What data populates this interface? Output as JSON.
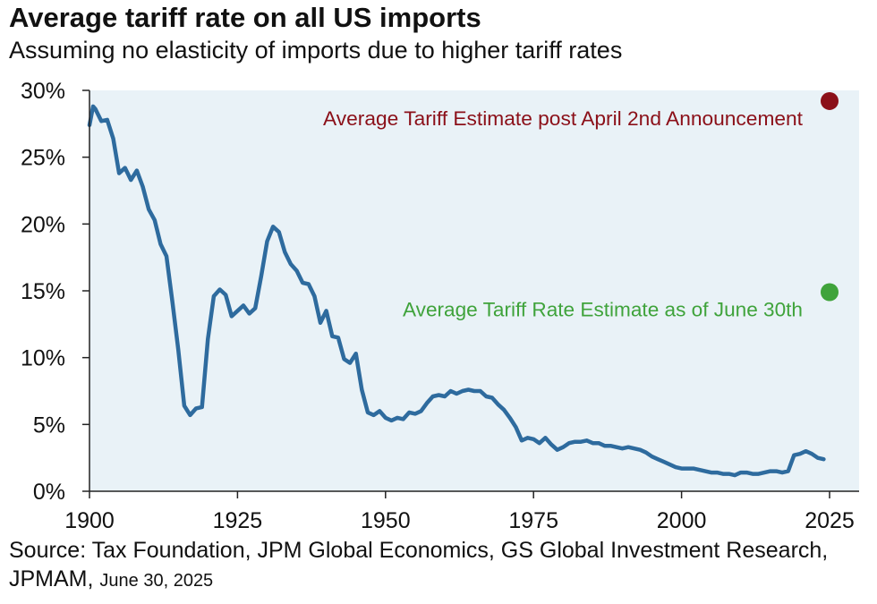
{
  "chart_data": {
    "type": "line",
    "title": "Average tariff rate on all US imports",
    "subtitle": "Assuming no elasticity of imports due to higher tariff rates",
    "xlabel": "",
    "ylabel": "",
    "xlim": [
      1900,
      2025
    ],
    "ylim": [
      0,
      30
    ],
    "x_ticks": [
      1900,
      1925,
      1950,
      1975,
      2000,
      2025
    ],
    "x_tick_labels": [
      "1900",
      "1925",
      "1950",
      "1975",
      "2000",
      "2025"
    ],
    "y_ticks": [
      0,
      5,
      10,
      15,
      20,
      25,
      30
    ],
    "y_tick_labels": [
      "0%",
      "5%",
      "10%",
      "15%",
      "20%",
      "25%",
      "30%"
    ],
    "series": [
      {
        "name": "Average tariff rate",
        "color": "#2e6b9e",
        "x": [
          1900,
          1900.6,
          1901,
          1902,
          1903,
          1904,
          1905,
          1906,
          1907,
          1908,
          1909,
          1910,
          1911,
          1912,
          1913,
          1914,
          1915,
          1916,
          1917,
          1918,
          1919,
          1920,
          1921,
          1922,
          1923,
          1924,
          1925,
          1926,
          1927,
          1928,
          1929,
          1930,
          1931,
          1932,
          1933,
          1934,
          1935,
          1936,
          1937,
          1938,
          1939,
          1940,
          1941,
          1942,
          1943,
          1944,
          1945,
          1946,
          1947,
          1948,
          1949,
          1950,
          1951,
          1952,
          1953,
          1954,
          1955,
          1956,
          1957,
          1958,
          1959,
          1960,
          1961,
          1962,
          1963,
          1964,
          1965,
          1966,
          1967,
          1968,
          1969,
          1970,
          1971,
          1972,
          1973,
          1974,
          1975,
          1976,
          1977,
          1978,
          1979,
          1980,
          1981,
          1982,
          1983,
          1984,
          1985,
          1986,
          1987,
          1988,
          1989,
          1990,
          1991,
          1992,
          1993,
          1994,
          1995,
          1996,
          1997,
          1998,
          1999,
          2000,
          2001,
          2002,
          2003,
          2004,
          2005,
          2006,
          2007,
          2008,
          2009,
          2010,
          2011,
          2012,
          2013,
          2014,
          2015,
          2016,
          2017,
          2018,
          2019,
          2020,
          2021,
          2022,
          2023,
          2024
        ],
        "values": [
          27.4,
          28.8,
          28.6,
          27.7,
          27.8,
          26.4,
          23.8,
          24.2,
          23.3,
          24.0,
          22.8,
          21.1,
          20.3,
          18.5,
          17.6,
          14.2,
          10.6,
          6.4,
          5.7,
          6.2,
          6.3,
          11.4,
          14.6,
          15.1,
          14.7,
          13.1,
          13.5,
          13.9,
          13.3,
          13.7,
          16.1,
          18.7,
          19.8,
          19.4,
          17.9,
          17.0,
          16.5,
          15.6,
          15.5,
          14.6,
          12.6,
          13.5,
          11.6,
          11.5,
          9.9,
          9.6,
          10.3,
          7.6,
          5.9,
          5.7,
          6.0,
          5.5,
          5.3,
          5.5,
          5.4,
          5.9,
          5.8,
          6.0,
          6.6,
          7.1,
          7.2,
          7.1,
          7.5,
          7.3,
          7.5,
          7.6,
          7.5,
          7.5,
          7.1,
          7.0,
          6.5,
          6.1,
          5.5,
          4.8,
          3.8,
          4.0,
          3.9,
          3.6,
          4.0,
          3.5,
          3.1,
          3.3,
          3.6,
          3.7,
          3.7,
          3.8,
          3.6,
          3.6,
          3.4,
          3.4,
          3.3,
          3.2,
          3.3,
          3.2,
          3.1,
          2.9,
          2.6,
          2.4,
          2.2,
          2.0,
          1.8,
          1.7,
          1.7,
          1.7,
          1.6,
          1.5,
          1.4,
          1.4,
          1.3,
          1.3,
          1.2,
          1.4,
          1.4,
          1.3,
          1.3,
          1.4,
          1.5,
          1.5,
          1.4,
          1.5,
          2.7,
          2.8,
          3.0,
          2.8,
          2.5,
          2.4
        ]
      }
    ],
    "annotations": [
      {
        "label": "Average Tariff Estimate post April 2nd Announcement",
        "x": 2025,
        "y": 29.2,
        "color": "#8b1019"
      },
      {
        "label": "Average Tariff Rate Estimate as of June 30th",
        "x": 2025,
        "y": 14.9,
        "color": "#3fa33b"
      }
    ]
  },
  "source": {
    "text": "Source: Tax Foundation, JPM Global Economics, GS Global Investment Research, JPMAM,",
    "date": "June 30, 2025"
  }
}
